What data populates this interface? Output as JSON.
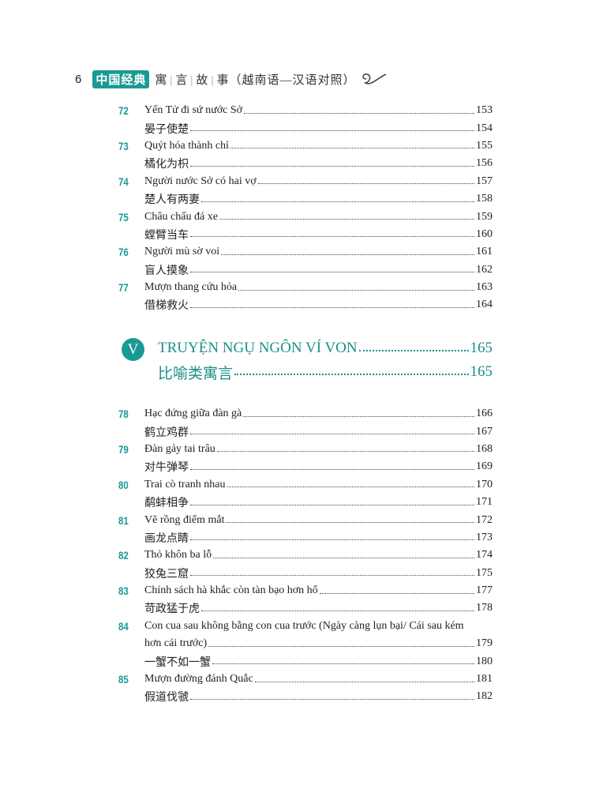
{
  "header": {
    "page_number": "6",
    "badge": "中国经典",
    "series_chars": [
      "寓",
      "言",
      "故",
      "事"
    ],
    "subtitle": "（越南语—汉语对照）",
    "accent_color": "#1a9a94",
    "ornament_icon": "swirl-ornament-icon"
  },
  "entries_top": [
    {
      "num": "72",
      "vi": "Yến Tử đi sứ nước Sở",
      "vi_page": "153",
      "zh": "晏子使楚",
      "zh_page": "154"
    },
    {
      "num": "73",
      "vi": "Quýt hóa thành chỉ",
      "vi_page": "155",
      "zh": "橘化为枳",
      "zh_page": "156"
    },
    {
      "num": "74",
      "vi": "Người nước Sở có hai vợ",
      "vi_page": "157",
      "zh": "楚人有两妻",
      "zh_page": "158"
    },
    {
      "num": "75",
      "vi": "Châu chấu đá xe",
      "vi_page": "159",
      "zh": "螳臂当车",
      "zh_page": "160"
    },
    {
      "num": "76",
      "vi": "Người mù sờ voi",
      "vi_page": "161",
      "zh": "盲人摸象",
      "zh_page": "162"
    },
    {
      "num": "77",
      "vi": "Mượn thang cứu hỏa",
      "vi_page": "163",
      "zh": "借梯救火",
      "zh_page": "164"
    }
  ],
  "section": {
    "numeral": "V",
    "title_vi": "TRUYỆN NGỤ NGÔN VÍ VON",
    "title_vi_page": "165",
    "title_zh": "比喻类寓言",
    "title_zh_page": "165"
  },
  "entries_bottom": [
    {
      "num": "78",
      "vi": "Hạc đứng giữa đàn gà",
      "vi_page": "166",
      "zh": "鹤立鸡群",
      "zh_page": "167"
    },
    {
      "num": "79",
      "vi": "Đàn gảy tai trâu",
      "vi_page": "168",
      "zh": "对牛弹琴",
      "zh_page": "169"
    },
    {
      "num": "80",
      "vi": "Trai cò tranh nhau",
      "vi_page": "170",
      "zh": "鹬蚌相争",
      "zh_page": "171"
    },
    {
      "num": "81",
      "vi": "Vẽ rồng điểm mắt",
      "vi_page": "172",
      "zh": "画龙点睛",
      "zh_page": "173"
    },
    {
      "num": "82",
      "vi": "Thỏ khôn ba lỗ",
      "vi_page": "174",
      "zh": "狡兔三窟",
      "zh_page": "175"
    },
    {
      "num": "83",
      "vi": "Chính sách hà khắc còn tàn bạo hơn hổ",
      "vi_page": "177",
      "zh": "苛政猛于虎",
      "zh_page": "178"
    },
    {
      "num": "84",
      "vi": "Con cua sau không bằng con cua trước (Ngày càng lụn bại/ Cái sau kém",
      "vi_cont": "hơn cái trước)",
      "vi_page": "179",
      "zh": "一蟹不如一蟹",
      "zh_page": "180"
    },
    {
      "num": "85",
      "vi": "Mượn đường đánh Quắc",
      "vi_page": "181",
      "zh": "假道伐虢",
      "zh_page": "182"
    }
  ]
}
